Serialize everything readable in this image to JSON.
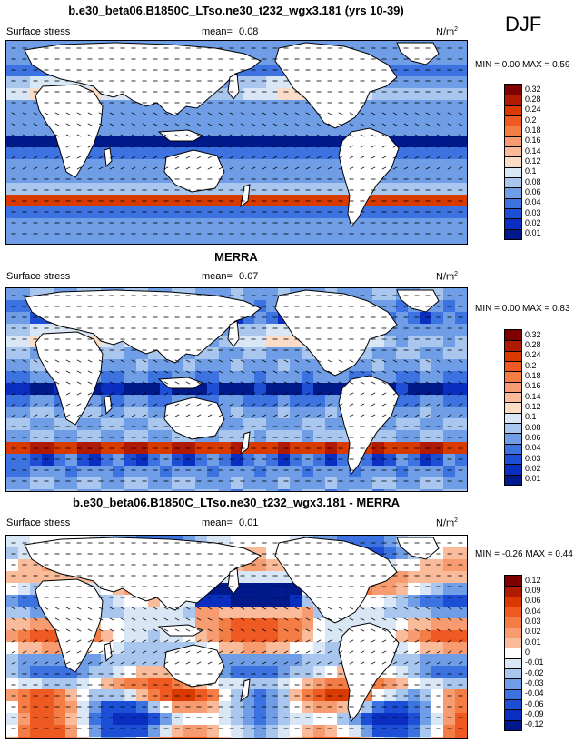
{
  "season": "DJF",
  "panels": [
    {
      "title": "b.e30_beta06.B1850C_LTso.ne30_t232_wgx3.181 (yrs 10-39)",
      "variable": "Surface stress",
      "mean_label": "mean=",
      "mean_value": "0.08",
      "units": "N/m",
      "units_sup": "2",
      "min_label": "MIN =",
      "min_value": "0.00",
      "max_label": "MAX =",
      "max_value": "0.59",
      "color_scale": "sequential",
      "levels": [
        "0.32",
        "0.28",
        "0.24",
        "0.2",
        "0.18",
        "0.16",
        "0.14",
        "0.12",
        "0.1",
        "0.08",
        "0.06",
        "0.04",
        "0.03",
        "0.02",
        "0.01"
      ]
    },
    {
      "title": "MERRA",
      "variable": "Surface stress",
      "mean_label": "mean=",
      "mean_value": "0.07",
      "units": "N/m",
      "units_sup": "2",
      "min_label": "MIN =",
      "min_value": "0.00",
      "max_label": "MAX =",
      "max_value": "0.83",
      "color_scale": "sequential",
      "levels": [
        "0.32",
        "0.28",
        "0.24",
        "0.2",
        "0.18",
        "0.16",
        "0.14",
        "0.12",
        "0.1",
        "0.08",
        "0.06",
        "0.04",
        "0.03",
        "0.02",
        "0.01"
      ]
    },
    {
      "title": "b.e30_beta06.B1850C_LTso.ne30_t232_wgx3.181 - MERRA",
      "variable": "Surface stress",
      "mean_label": "mean=",
      "mean_value": "0.01",
      "units": "N/m",
      "units_sup": "2",
      "min_label": "MIN =",
      "min_value": "-0.26",
      "max_label": "MAX =",
      "max_value": "0.44",
      "color_scale": "diverging",
      "levels": [
        "0.12",
        "0.09",
        "0.06",
        "0.04",
        "0.03",
        "0.02",
        "0.01",
        "0",
        "-0.01",
        "-0.02",
        "-0.03",
        "-0.04",
        "-0.06",
        "-0.09",
        "-0.12"
      ]
    }
  ],
  "colors": {
    "sequential": [
      "#7f0000",
      "#b01a00",
      "#d93a00",
      "#ef5a23",
      "#f47c45",
      "#f79c70",
      "#f9bb99",
      "#fbdcc6",
      "#d8e6f5",
      "#a9c7ee",
      "#6f9ee6",
      "#3d73e0",
      "#1d4fd6",
      "#0a2fc0",
      "#001a8c"
    ],
    "diverging": [
      "#7f0000",
      "#b01a00",
      "#d93a00",
      "#ef5a23",
      "#f47c45",
      "#f79c70",
      "#f9bb99",
      "#ffffff",
      "#d8e6f5",
      "#a9c7ee",
      "#6f9ee6",
      "#3d73e0",
      "#1d4fd6",
      "#0a2fc0",
      "#001a8c"
    ]
  }
}
